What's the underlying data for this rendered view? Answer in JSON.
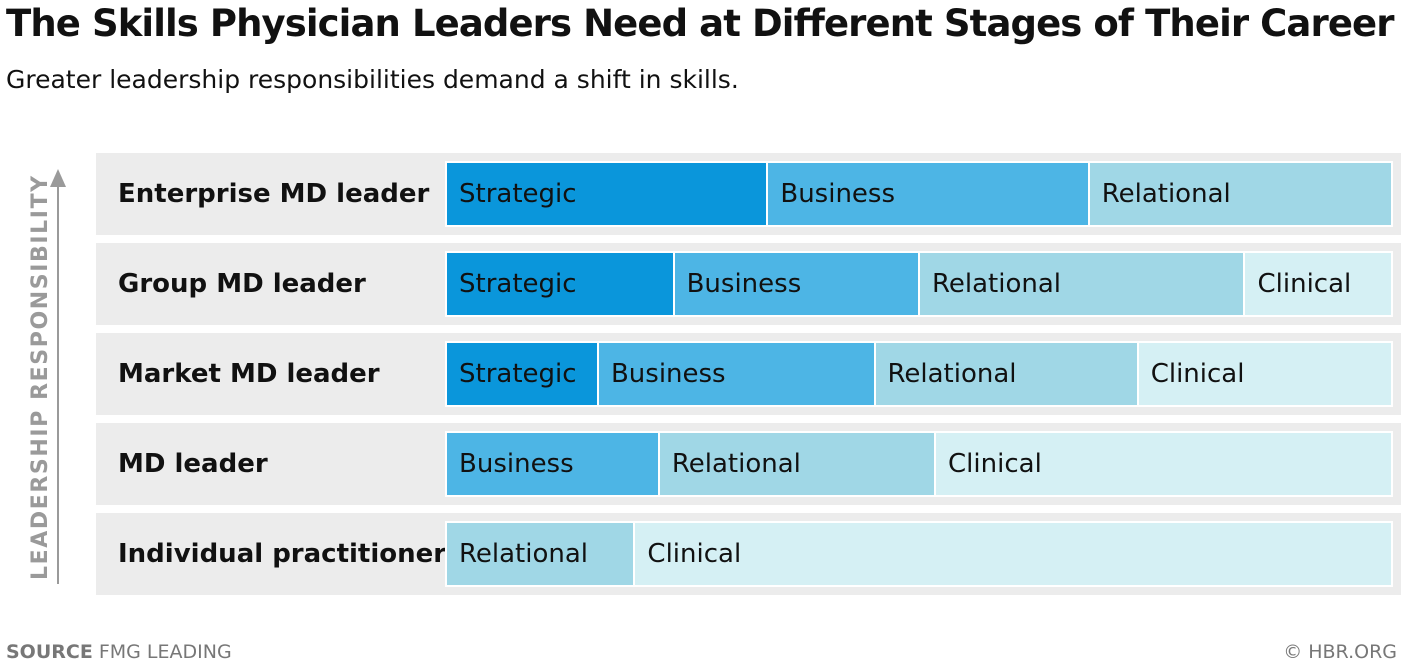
{
  "title": "The Skills Physician Leaders Need at Different Stages of Their Career",
  "subtitle": "Greater leadership responsibilities demand a shift in skills.",
  "footer": {
    "source_label": "SOURCE",
    "source_value": "FMG LEADING",
    "credit": "© HBR.ORG"
  },
  "colors": {
    "Strategic": "#0a96db",
    "Business": "#4db5e5",
    "Relational": "#a0d7e6",
    "Clinical": "#d5f0f4",
    "row_background": "#ececec",
    "axis": "#9a9a9a"
  },
  "chart_data": {
    "type": "bar",
    "orientation": "horizontal",
    "stacking": "percent",
    "ylabel": "LEADERSHIP RESPONSIBILITY",
    "categories": [
      "Enterprise MD leader",
      "Group MD leader",
      "Market MD leader",
      "MD leader",
      "Individual practitioner"
    ],
    "series": [
      {
        "name": "Strategic",
        "values": [
          34,
          24,
          15.5,
          0,
          0
        ]
      },
      {
        "name": "Business",
        "values": [
          34,
          26,
          29.5,
          22,
          0
        ]
      },
      {
        "name": "Relational",
        "values": [
          32,
          35,
          28,
          29,
          19
        ]
      },
      {
        "name": "Clinical",
        "values": [
          0,
          15,
          27,
          49,
          81
        ]
      }
    ]
  }
}
